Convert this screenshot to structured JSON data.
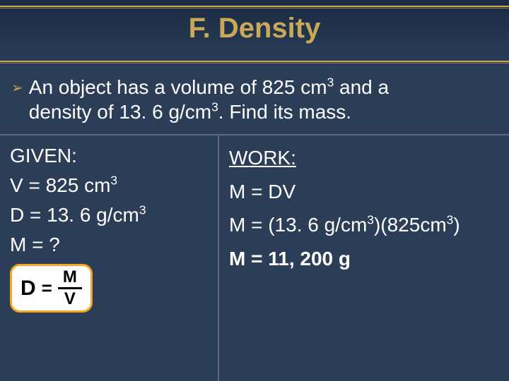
{
  "title": "F. Density",
  "bullet_glyph": "➢",
  "problem": {
    "line1_a": "An object has a volume of 825 cm",
    "line1_sup": "3",
    "line1_b": " and a",
    "line2_a": "density of 13. 6 g/cm",
    "line2_sup": "3",
    "line2_b": ".  Find its mass."
  },
  "given": {
    "heading": "GIVEN:",
    "v_a": "V = 825 cm",
    "v_sup": "3",
    "d_a": "D = 13. 6 g/cm",
    "d_sup": "3",
    "m": "M = ?"
  },
  "formula": {
    "D": "D",
    "eq": "=",
    "M": "M",
    "V": "V"
  },
  "work": {
    "heading": "WORK:",
    "step1": "M = DV",
    "step2_a": "M = (13. 6 g/cm",
    "step2_sup1": "3",
    "step2_b": ")(825cm",
    "step2_sup2": "3",
    "step2_c": ")",
    "result": "M = 11, 200 g"
  },
  "colors": {
    "background": "#2b3d57",
    "accent": "#c9a85a",
    "text": "#ffffff",
    "divider": "#5a6a80",
    "formula_border": "#f5a623",
    "formula_bg": "#ffffff"
  }
}
